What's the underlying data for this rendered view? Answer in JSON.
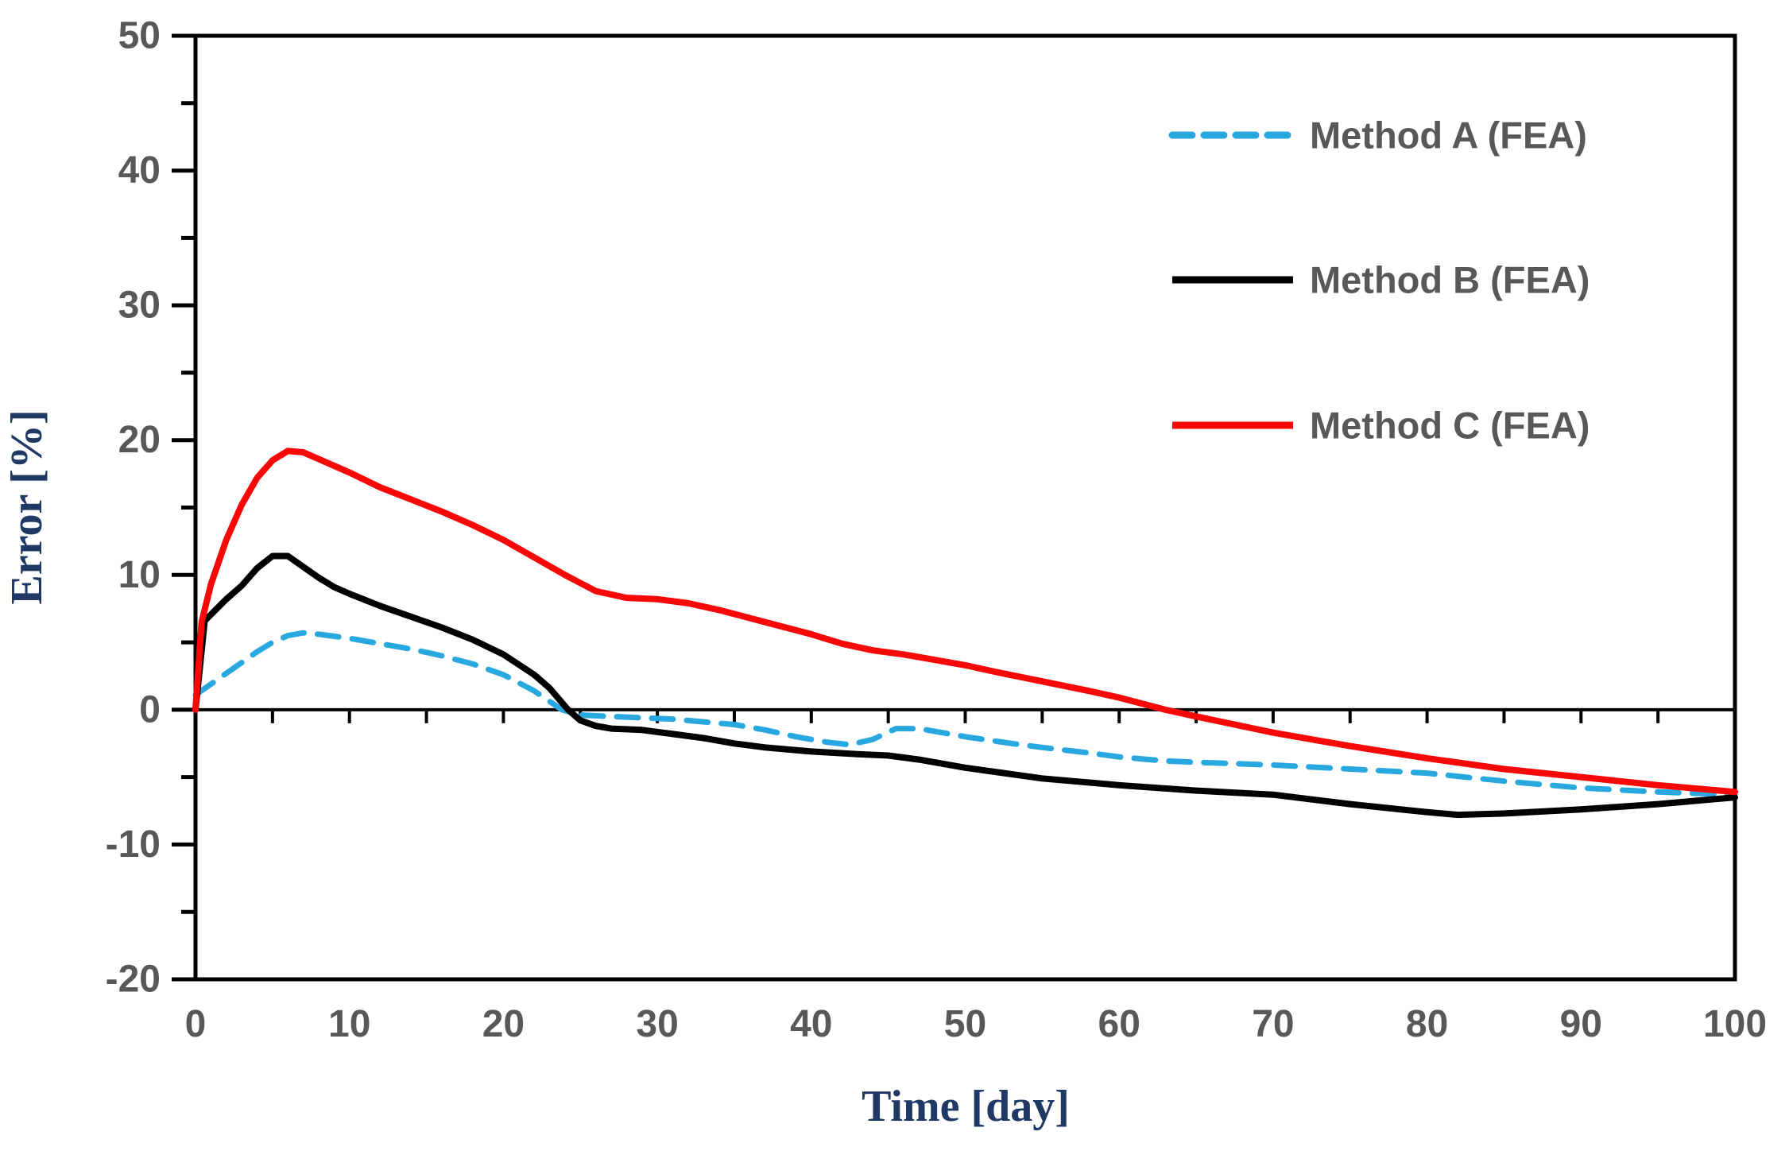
{
  "page": {
    "background": "#FFFFFF"
  },
  "style": {
    "tick_label_color": "#58585A",
    "axis_title_color": "#1F3864",
    "frame_color": "#000000",
    "legend_text_color": "#58585A"
  },
  "chart_data": {
    "type": "line",
    "title": "",
    "xlabel": "Time [day]",
    "ylabel": "Error [%]",
    "xlim": [
      0,
      100
    ],
    "ylim": [
      -20,
      50
    ],
    "x_major_ticks": [
      0,
      10,
      20,
      30,
      40,
      50,
      60,
      70,
      80,
      90,
      100
    ],
    "x_minor_tick_step": 5,
    "y_major_ticks": [
      50,
      40,
      30,
      20,
      10,
      0,
      -10,
      -20
    ],
    "y_minor_tick_step": 5,
    "grid": false,
    "zero_axis_line": true,
    "legend_position": "top-right",
    "series": [
      {
        "name": "Method A (FEA)",
        "color": "#29A8E0",
        "style": "dashed",
        "points": [
          [
            0,
            1.1
          ],
          [
            1,
            1.9
          ],
          [
            2,
            2.7
          ],
          [
            3,
            3.5
          ],
          [
            4,
            4.3
          ],
          [
            5,
            5.0
          ],
          [
            6,
            5.5
          ],
          [
            7,
            5.7
          ],
          [
            8,
            5.6
          ],
          [
            10,
            5.3
          ],
          [
            12,
            4.9
          ],
          [
            14,
            4.5
          ],
          [
            16,
            4.0
          ],
          [
            18,
            3.4
          ],
          [
            20,
            2.6
          ],
          [
            22,
            1.4
          ],
          [
            23.8,
            0
          ],
          [
            25,
            -0.4
          ],
          [
            27,
            -0.5
          ],
          [
            29,
            -0.6
          ],
          [
            31,
            -0.7
          ],
          [
            33,
            -0.9
          ],
          [
            35,
            -1.1
          ],
          [
            37,
            -1.5
          ],
          [
            39,
            -2.0
          ],
          [
            41,
            -2.4
          ],
          [
            42.5,
            -2.6
          ],
          [
            44,
            -2.2
          ],
          [
            45.5,
            -1.4
          ],
          [
            47,
            -1.4
          ],
          [
            48.5,
            -1.7
          ],
          [
            50,
            -2.0
          ],
          [
            53,
            -2.5
          ],
          [
            55,
            -2.8
          ],
          [
            58,
            -3.2
          ],
          [
            60,
            -3.5
          ],
          [
            63,
            -3.8
          ],
          [
            65,
            -3.9
          ],
          [
            70,
            -4.1
          ],
          [
            75,
            -4.4
          ],
          [
            80,
            -4.7
          ],
          [
            85,
            -5.3
          ],
          [
            90,
            -5.8
          ],
          [
            95,
            -6.1
          ],
          [
            100,
            -6.3
          ]
        ]
      },
      {
        "name": "Method B (FEA)",
        "color": "#000000",
        "style": "solid",
        "points": [
          [
            0,
            0
          ],
          [
            0.6,
            6.6
          ],
          [
            2,
            8.2
          ],
          [
            3,
            9.2
          ],
          [
            4,
            10.5
          ],
          [
            5,
            11.4
          ],
          [
            6,
            11.4
          ],
          [
            7,
            10.6
          ],
          [
            8,
            9.8
          ],
          [
            9,
            9.1
          ],
          [
            10,
            8.6
          ],
          [
            12,
            7.7
          ],
          [
            14,
            6.9
          ],
          [
            16,
            6.1
          ],
          [
            18,
            5.2
          ],
          [
            20,
            4.1
          ],
          [
            22,
            2.6
          ],
          [
            23,
            1.6
          ],
          [
            24.2,
            0
          ],
          [
            25,
            -0.8
          ],
          [
            26,
            -1.2
          ],
          [
            27,
            -1.4
          ],
          [
            29,
            -1.5
          ],
          [
            31,
            -1.8
          ],
          [
            33,
            -2.1
          ],
          [
            35,
            -2.5
          ],
          [
            37,
            -2.8
          ],
          [
            40,
            -3.1
          ],
          [
            43,
            -3.3
          ],
          [
            45,
            -3.4
          ],
          [
            47,
            -3.7
          ],
          [
            50,
            -4.3
          ],
          [
            55,
            -5.1
          ],
          [
            60,
            -5.6
          ],
          [
            65,
            -6.0
          ],
          [
            70,
            -6.3
          ],
          [
            75,
            -7.0
          ],
          [
            80,
            -7.6
          ],
          [
            82,
            -7.8
          ],
          [
            85,
            -7.7
          ],
          [
            90,
            -7.4
          ],
          [
            95,
            -7.0
          ],
          [
            100,
            -6.5
          ]
        ]
      },
      {
        "name": "Method C (FEA)",
        "color": "#F90606",
        "style": "solid",
        "points": [
          [
            0,
            0
          ],
          [
            0.4,
            6.5
          ],
          [
            1,
            9.3
          ],
          [
            2,
            12.6
          ],
          [
            3,
            15.2
          ],
          [
            4,
            17.2
          ],
          [
            5,
            18.5
          ],
          [
            6,
            19.2
          ],
          [
            7,
            19.1
          ],
          [
            8,
            18.6
          ],
          [
            9,
            18.1
          ],
          [
            10,
            17.6
          ],
          [
            12,
            16.5
          ],
          [
            14,
            15.6
          ],
          [
            16,
            14.7
          ],
          [
            18,
            13.7
          ],
          [
            20,
            12.6
          ],
          [
            22,
            11.3
          ],
          [
            24,
            10.0
          ],
          [
            25,
            9.4
          ],
          [
            26,
            8.8
          ],
          [
            28,
            8.3
          ],
          [
            30,
            8.2
          ],
          [
            32,
            7.9
          ],
          [
            34,
            7.4
          ],
          [
            36,
            6.8
          ],
          [
            38,
            6.2
          ],
          [
            40,
            5.6
          ],
          [
            42,
            4.9
          ],
          [
            44,
            4.4
          ],
          [
            46,
            4.1
          ],
          [
            48,
            3.7
          ],
          [
            50,
            3.3
          ],
          [
            52,
            2.8
          ],
          [
            55,
            2.1
          ],
          [
            58,
            1.4
          ],
          [
            60,
            0.9
          ],
          [
            63,
            0
          ],
          [
            65,
            -0.5
          ],
          [
            70,
            -1.7
          ],
          [
            75,
            -2.7
          ],
          [
            80,
            -3.6
          ],
          [
            85,
            -4.4
          ],
          [
            90,
            -5.0
          ],
          [
            95,
            -5.6
          ],
          [
            100,
            -6.1
          ]
        ]
      }
    ]
  }
}
